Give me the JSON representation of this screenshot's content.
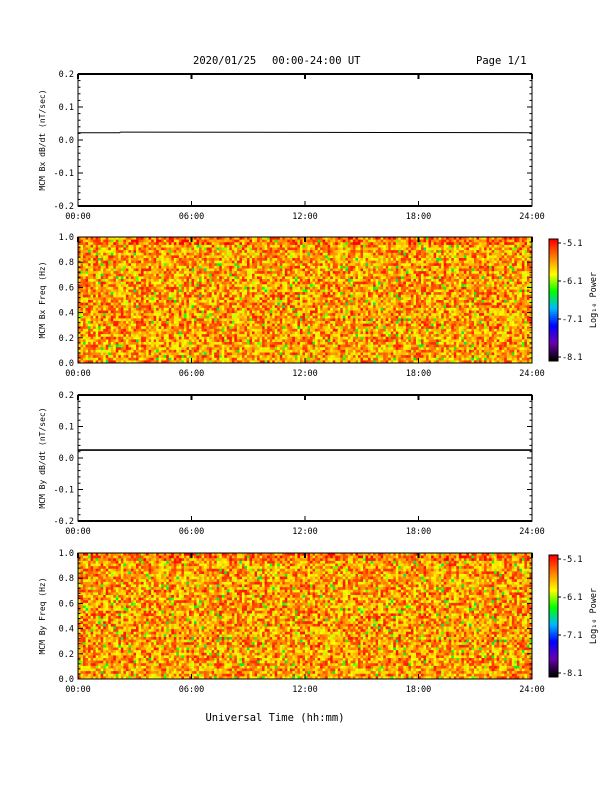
{
  "header": {
    "date": "2020/01/25",
    "time_range": "00:00-24:00 UT",
    "page": "Page 1/1"
  },
  "x_axis": {
    "title": "Universal Time (hh:mm)",
    "ticks": [
      "00:00",
      "06:00",
      "12:00",
      "18:00",
      "24:00"
    ]
  },
  "colorbar": {
    "label": "Log₁₀ Power",
    "ticks": [
      "-5.1",
      "-6.1",
      "-7.1",
      "-8.1"
    ],
    "scale_colors": [
      "#000000",
      "#6a00b0",
      "#0000ff",
      "#00b8ff",
      "#00ff00",
      "#ffff00",
      "#ff8000",
      "#ff0000"
    ]
  },
  "chart_data": [
    {
      "type": "line",
      "ylabel": "MCM Bx dB/dt (nT/sec)",
      "ytick_labels": [
        "0.2",
        "0.1",
        "0.0",
        "-0.1",
        "-0.2"
      ],
      "ylim": [
        -0.2,
        0.2
      ],
      "xlim": [
        0,
        24
      ],
      "series": [
        {
          "x": [
            0,
            2.2,
            2.25,
            24
          ],
          "y": [
            0.022,
            0.022,
            0.024,
            0.022
          ]
        }
      ]
    },
    {
      "type": "heatmap",
      "ylabel": "MCM Bx Freq (Hz)",
      "ytick_labels": [
        "1.0",
        "0.8",
        "0.6",
        "0.4",
        "0.2",
        "0.0"
      ],
      "ylim": [
        0,
        1
      ],
      "xlim": [
        0,
        24
      ],
      "zrange": [
        -8.1,
        -5.1
      ],
      "typical_log_power": -5.6
    },
    {
      "type": "line",
      "ylabel": "MCM By dB/dt (nT/sec)",
      "ytick_labels": [
        "0.2",
        "0.1",
        "0.0",
        "-0.1",
        "-0.2"
      ],
      "ylim": [
        -0.2,
        0.2
      ],
      "xlim": [
        0,
        24
      ],
      "series": [
        {
          "x": [
            0,
            24
          ],
          "y": [
            0.025,
            0.025
          ]
        }
      ]
    },
    {
      "type": "heatmap",
      "ylabel": "MCM By Freq (Hz)",
      "ytick_labels": [
        "1.0",
        "0.8",
        "0.6",
        "0.4",
        "0.2",
        "0.0"
      ],
      "ylim": [
        0,
        1
      ],
      "xlim": [
        0,
        24
      ],
      "zrange": [
        -8.1,
        -5.1
      ],
      "typical_log_power": -5.6
    }
  ]
}
